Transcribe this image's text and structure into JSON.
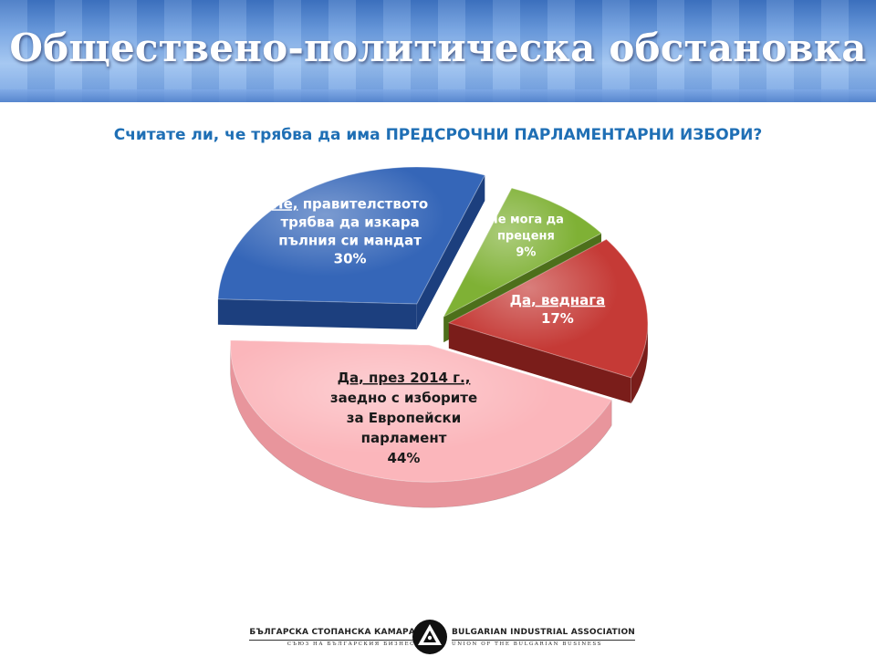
{
  "header": {
    "title": "Обществено-политическа обстановка"
  },
  "question": "Считате ли, че трябва да има ПРЕДСРОЧНИ ПАРЛАМЕНТАРНИ ИЗБОРИ?",
  "chart_data": {
    "type": "pie",
    "title": "Считате ли, че трябва да има ПРЕДСРОЧНИ ПАРЛАМЕНТАРНИ ИЗБОРИ?",
    "slices": [
      {
        "label_lines": [
          {
            "underline": "Не,",
            "rest": " правителството"
          },
          {
            "underline": "",
            "rest": "трябва да изкара"
          },
          {
            "underline": "",
            "rest": "пълния си мандат"
          }
        ],
        "value": 30,
        "value_label": "30%",
        "color": "#3566b8",
        "side_color": "#1c3f7e"
      },
      {
        "label_lines": [
          {
            "underline": "",
            "rest": "Не мога да"
          },
          {
            "underline": "",
            "rest": "преценя"
          }
        ],
        "value": 9,
        "value_label": "9%",
        "color": "#7fb135",
        "side_color": "#4d6f1b"
      },
      {
        "label_lines": [
          {
            "underline": "Да, веднага",
            "rest": ""
          }
        ],
        "value": 17,
        "value_label": "17%",
        "color": "#c53a36",
        "side_color": "#7a1d1a"
      },
      {
        "label_lines": [
          {
            "underline": "Да, през 2014 г.,",
            "rest": ""
          },
          {
            "underline": "",
            "rest": "заедно с изборите"
          },
          {
            "underline": "",
            "rest": "за Европейски"
          },
          {
            "underline": "",
            "rest": "парламент"
          }
        ],
        "value": 44,
        "value_label": "44%",
        "color": "#fbb6bb",
        "side_color": "#e8959c"
      }
    ]
  },
  "footer": {
    "left_line1": "БЪЛГАРСКА СТОПАНСКА КАМАРА",
    "left_line2": "СЪЮЗ НА БЪЛГАРСКИЯ БИЗНЕС",
    "right_line1": "BULGARIAN INDUSTRIAL ASSOCIATION",
    "right_line2": "UNION OF THE BULGARIAN BUSINESS",
    "emblem_icon": "bia-emblem-icon"
  }
}
